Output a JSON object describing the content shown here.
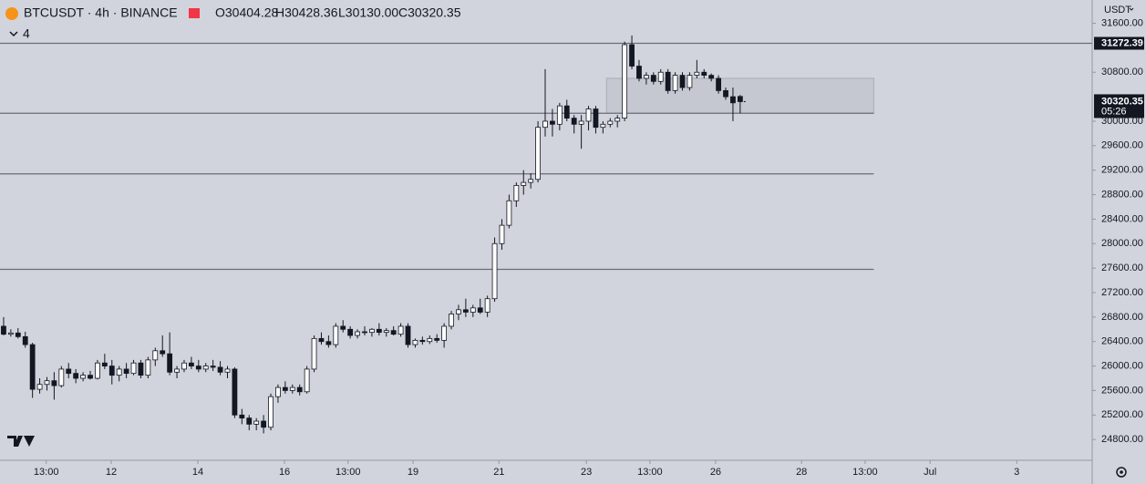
{
  "header": {
    "symbol": "BTCUSDT · 4h · BINANCE",
    "ohlc": [
      "O30404.28",
      "H30428.36",
      "L30130.00",
      "C30320.35"
    ],
    "indicator": "4",
    "currency": "USDT",
    "countdown": "05:26"
  },
  "chart_data": {
    "type": "candlestick",
    "up_color": "#ffffff",
    "down_color": "#131722",
    "border_color": "#131722",
    "open": [
      26650,
      26520,
      26540,
      26480,
      26350,
      25620,
      25700,
      25760,
      25680,
      25950,
      25880,
      25800,
      25850,
      25800,
      26050,
      26000,
      25850,
      25950,
      25880,
      26050,
      25850,
      26100,
      26250,
      26200,
      25900,
      25950,
      26050,
      26000,
      25950,
      26000,
      25980,
      25900,
      25950,
      25200,
      25150,
      25050,
      25100,
      25000,
      25500,
      25650,
      25600,
      25650,
      25580,
      25950,
      26450,
      26400,
      26350,
      26650,
      26600,
      26500,
      26560,
      26550,
      26600,
      26550,
      26580,
      26520,
      26650,
      26350,
      26420,
      26400,
      26450,
      26420,
      26650,
      26850,
      26920,
      26880,
      26950,
      26880,
      27100,
      28000,
      28300,
      28700,
      28950,
      29000,
      29050,
      29900,
      30000,
      29950,
      30250,
      30050,
      29950,
      30000,
      30200,
      29900,
      29950,
      30000,
      30050,
      31250,
      30900,
      30700,
      30750,
      30650,
      30800,
      30500,
      30750,
      30550,
      30750,
      30800,
      30750,
      30700,
      30500,
      30400,
      30404.28
    ],
    "high": [
      26800,
      26600,
      26620,
      26560,
      26380,
      25800,
      25820,
      25900,
      26000,
      26050,
      25950,
      25900,
      25920,
      26100,
      26200,
      26100,
      26000,
      26050,
      26100,
      26100,
      26150,
      26300,
      26500,
      26550,
      26000,
      26100,
      26150,
      26100,
      26050,
      26100,
      26080,
      26000,
      25980,
      25300,
      25200,
      25150,
      25200,
      25550,
      25700,
      25750,
      25700,
      25700,
      26000,
      26500,
      26550,
      26500,
      26700,
      26750,
      26650,
      26600,
      26650,
      26620,
      26700,
      26620,
      26650,
      26700,
      26700,
      26450,
      26480,
      26500,
      26520,
      26700,
      26900,
      27000,
      27100,
      27000,
      27100,
      27150,
      28100,
      28400,
      28800,
      29000,
      29200,
      29150,
      30000,
      30850,
      30200,
      30300,
      30350,
      30100,
      30100,
      30250,
      30250,
      30000,
      30050,
      30100,
      31300,
      31400,
      31000,
      30800,
      30800,
      30850,
      30850,
      30800,
      30800,
      30800,
      31000,
      30850,
      30780,
      30750,
      30550,
      30550,
      30428.36
    ],
    "low": [
      26500,
      26480,
      26450,
      26300,
      25480,
      25550,
      25600,
      25450,
      25650,
      25800,
      25720,
      25750,
      25780,
      25780,
      25950,
      25700,
      25750,
      25800,
      25850,
      25800,
      25800,
      26000,
      26150,
      25850,
      25800,
      25900,
      25950,
      25900,
      25900,
      25920,
      25850,
      25800,
      25150,
      25050,
      24950,
      24950,
      24900,
      24950,
      25400,
      25550,
      25550,
      25520,
      25550,
      25900,
      26350,
      26300,
      26300,
      26550,
      26450,
      26450,
      26500,
      26480,
      26500,
      26480,
      26500,
      26480,
      26300,
      26300,
      26350,
      26360,
      26380,
      26300,
      26600,
      26750,
      26800,
      26800,
      26850,
      26800,
      27050,
      27900,
      28250,
      28600,
      28800,
      28900,
      29000,
      29750,
      29750,
      29850,
      30000,
      29800,
      29550,
      29850,
      29800,
      29800,
      29900,
      29900,
      30000,
      30850,
      30650,
      30600,
      30600,
      30600,
      30450,
      30450,
      30500,
      30500,
      30700,
      30700,
      30650,
      30450,
      30350,
      30000,
      30130
    ],
    "close": [
      26520,
      26540,
      26480,
      26350,
      25620,
      25700,
      25760,
      25680,
      25950,
      25880,
      25800,
      25850,
      25800,
      26050,
      26000,
      25850,
      25950,
      25880,
      26050,
      25850,
      26100,
      26250,
      26200,
      25900,
      25950,
      26050,
      26000,
      25950,
      26000,
      25980,
      25900,
      25950,
      25200,
      25150,
      25050,
      25100,
      25000,
      25500,
      25650,
      25600,
      25650,
      25580,
      25950,
      26450,
      26400,
      26350,
      26650,
      26600,
      26500,
      26560,
      26550,
      26600,
      26550,
      26580,
      26520,
      26650,
      26350,
      26420,
      26400,
      26450,
      26420,
      26650,
      26850,
      26920,
      26880,
      26950,
      26880,
      27100,
      28000,
      28300,
      28700,
      28950,
      29000,
      29050,
      29900,
      30000,
      29950,
      30250,
      30050,
      29950,
      30000,
      30200,
      29900,
      29950,
      30000,
      30050,
      31250,
      30900,
      30700,
      30750,
      30650,
      30800,
      30500,
      30750,
      30550,
      30750,
      30800,
      30750,
      30700,
      30500,
      30400,
      30300,
      30320.35
    ],
    "levels": [
      31272.39,
      30130,
      29140,
      27580
    ],
    "level_end": 120.5,
    "zone": {
      "x": [
        83.5,
        120.5
      ],
      "y": [
        30130,
        30700
      ]
    },
    "xlim": [
      -0.5,
      150.75
    ],
    "ylim": [
      24460,
      31980
    ],
    "xticks": [
      {
        "value": 5.9,
        "label": "13:00"
      },
      {
        "value": 14.9,
        "label": "12"
      },
      {
        "value": 26.9,
        "label": "14"
      },
      {
        "value": 38.9,
        "label": "16"
      },
      {
        "value": 47.7,
        "label": "13:00"
      },
      {
        "value": 56.7,
        "label": "19"
      },
      {
        "value": 68.6,
        "label": "21"
      },
      {
        "value": 80.7,
        "label": "23"
      },
      {
        "value": 89.5,
        "label": "13:00"
      },
      {
        "value": 98.6,
        "label": "26"
      },
      {
        "value": 110.5,
        "label": "28"
      },
      {
        "value": 119.3,
        "label": "13:00"
      },
      {
        "value": 128.3,
        "label": "Jul"
      },
      {
        "value": 140.3,
        "label": "3"
      }
    ],
    "yticks": [
      {
        "value": 24800,
        "label": "24800.00"
      },
      {
        "value": 25200,
        "label": "25200.00"
      },
      {
        "value": 25600,
        "label": "25600.00"
      },
      {
        "value": 26000,
        "label": "26000.00"
      },
      {
        "value": 26400,
        "label": "26400.00"
      },
      {
        "value": 26800,
        "label": "26800.00"
      },
      {
        "value": 27200,
        "label": "27200.00"
      },
      {
        "value": 27600,
        "label": "27600.00"
      },
      {
        "value": 28000,
        "label": "28000.00"
      },
      {
        "value": 28400,
        "label": "28400.00"
      },
      {
        "value": 28800,
        "label": "28800.00"
      },
      {
        "value": 29200,
        "label": "29200.00"
      },
      {
        "value": 29600,
        "label": "29600.00"
      },
      {
        "value": 30000,
        "label": "30000.00"
      },
      {
        "value": 30800,
        "label": "30800.00"
      },
      {
        "value": 31600,
        "label": "31600.00"
      }
    ]
  }
}
